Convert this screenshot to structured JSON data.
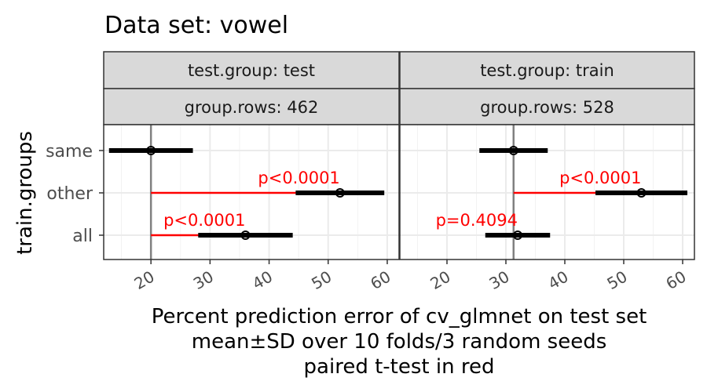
{
  "chart_data": {
    "type": "scatter",
    "title": "Data set: vowel",
    "xlabel_lines": [
      "Percent prediction error of cv_glmnet on test set",
      "mean±SD over 10 folds/3 random seeds",
      "paired t-test in red"
    ],
    "ylabel": "train.groups",
    "categories": [
      "same",
      "other",
      "all"
    ],
    "xlim": [
      12,
      62
    ],
    "xticks": [
      20,
      30,
      40,
      50,
      60
    ],
    "grid": true,
    "colors": {
      "point": "#000000",
      "ttest": "#ff0000",
      "strip": "#d9d9d9",
      "reference": "#808080",
      "grid": "#ebebeb"
    },
    "panels": [
      {
        "strip_top": "test.group: test",
        "strip_bottom": "group.rows: 462",
        "reference": 20.0,
        "points": [
          {
            "group": "same",
            "mean": 20.0,
            "sd": 7.1
          },
          {
            "group": "other",
            "mean": 52.0,
            "sd": 7.5
          },
          {
            "group": "all",
            "mean": 36.0,
            "sd": 8.0
          }
        ],
        "ttests": [
          {
            "group": "other",
            "label": "p<0.0001"
          },
          {
            "group": "all",
            "label": "p<0.0001"
          }
        ]
      },
      {
        "strip_top": "test.group: train",
        "strip_bottom": "group.rows: 528",
        "reference": 31.3,
        "points": [
          {
            "group": "same",
            "mean": 31.3,
            "sd": 5.8
          },
          {
            "group": "other",
            "mean": 53.0,
            "sd": 7.8
          },
          {
            "group": "all",
            "mean": 32.0,
            "sd": 5.5
          }
        ],
        "ttests": [
          {
            "group": "other",
            "label": "p<0.0001"
          },
          {
            "group": "all",
            "label": "p=0.4094"
          }
        ]
      }
    ]
  }
}
